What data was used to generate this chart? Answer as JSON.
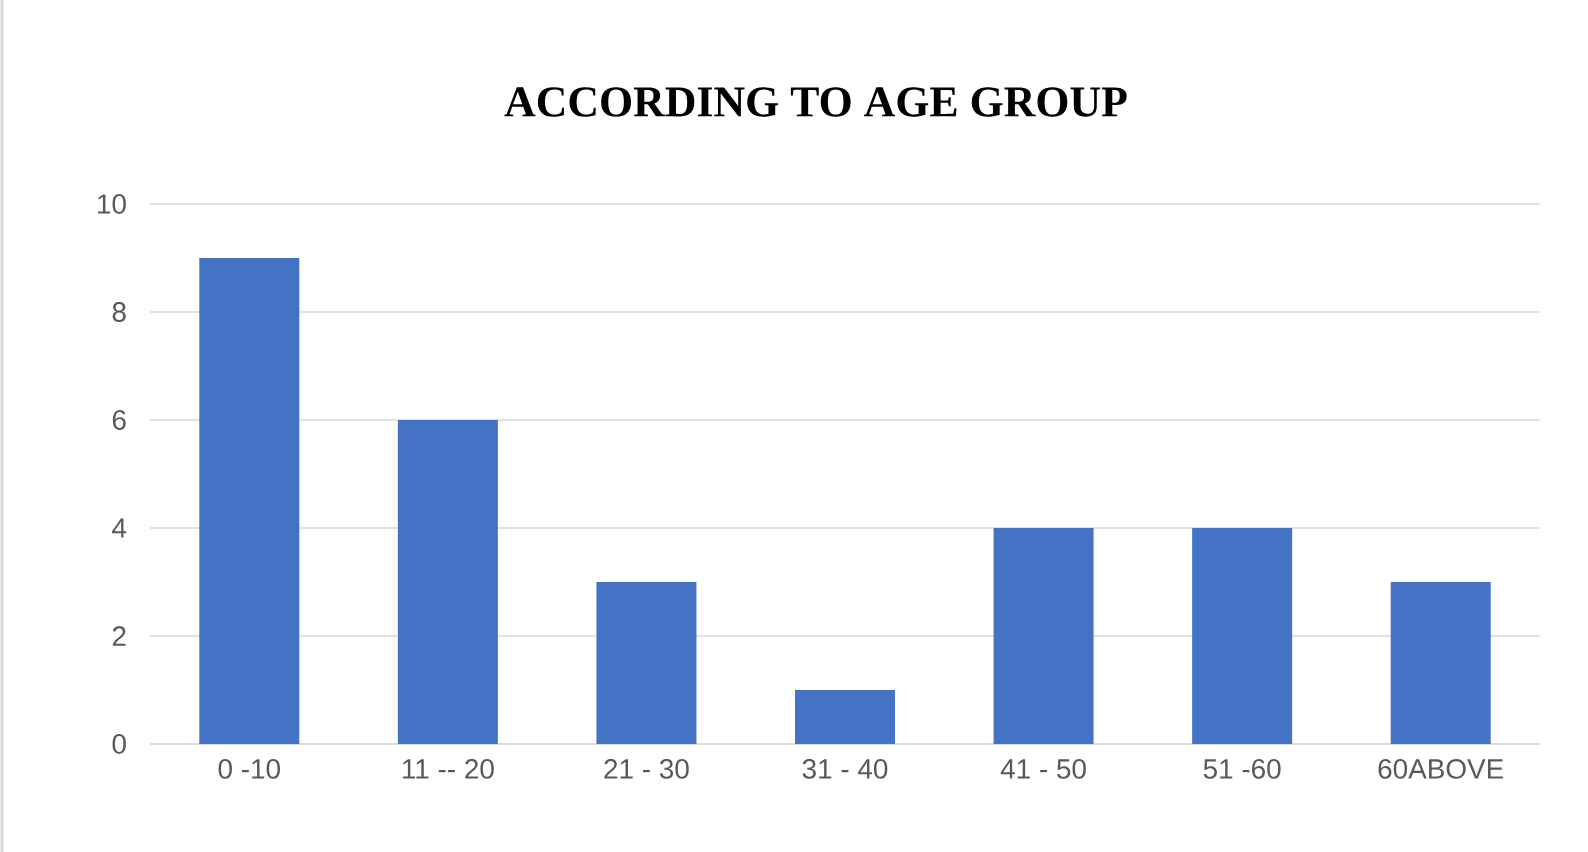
{
  "chart_data": {
    "type": "bar",
    "title": "ACCORDING TO AGE GROUP",
    "categories": [
      "0 -10",
      "11 -- 20",
      "21 - 30",
      "31 - 40",
      "41 - 50",
      "51 -60",
      "60ABOVE"
    ],
    "values": [
      9,
      6,
      3,
      1,
      4,
      4,
      3
    ],
    "color": "#4472c4",
    "ylim": [
      0,
      10
    ],
    "yticks": [
      0,
      2,
      4,
      6,
      8,
      10
    ],
    "grid": "y"
  }
}
